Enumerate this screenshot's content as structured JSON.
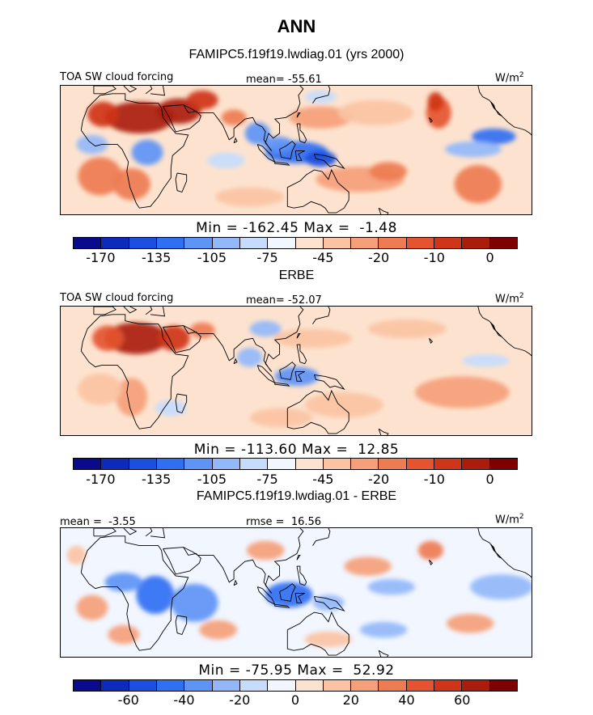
{
  "figure_title": "ANN",
  "colors": {
    "scale": [
      "#0a0a8c",
      "#0d2bbb",
      "#1a4fe0",
      "#2f6ff2",
      "#5d94f6",
      "#93b8fa",
      "#c6dcfd",
      "#f2f6ff",
      "#fde3cf",
      "#fbc3a3",
      "#f5a07a",
      "#ee7c52",
      "#e5542f",
      "#cf3518",
      "#aa1c0c",
      "#7f0000"
    ],
    "land": "#000000"
  },
  "chart_data": [
    {
      "type": "heatmap",
      "subtitle": "FAMIPC5.f19f19.lwdiag.01 (yrs 2000)",
      "left_label": "TOA SW cloud forcing",
      "center_label": "mean= -55.61",
      "right_label": "W/m",
      "right_label_sup": "2",
      "stats": "Min = -162.45 Max =  -1.48",
      "colorbar_ticks": [
        "-170",
        "-135",
        "-105",
        "-75",
        "-45",
        "-20",
        "-10",
        "0"
      ],
      "regions": [
        {
          "lon": 20,
          "lat": 22,
          "value": 0.96,
          "rx": 22,
          "ry": 10
        },
        {
          "lon": 45,
          "lat": 26,
          "value": 0.92,
          "rx": 14,
          "ry": 8
        },
        {
          "lon": 60,
          "lat": 33,
          "value": 0.85,
          "rx": 10,
          "ry": 6
        },
        {
          "lon": -3,
          "lat": 24,
          "value": 0.85,
          "rx": 10,
          "ry": 8
        },
        {
          "lon": 15,
          "lat": -20,
          "value": 0.72,
          "rx": 12,
          "ry": 10
        },
        {
          "lon": -5,
          "lat": -15,
          "value": 0.7,
          "rx": 14,
          "ry": 12
        },
        {
          "lon": 160,
          "lat": -17,
          "value": 0.68,
          "rx": 28,
          "ry": 8
        },
        {
          "lon": 135,
          "lat": 22,
          "value": 0.65,
          "rx": 20,
          "ry": 7
        },
        {
          "lon": 170,
          "lat": 25,
          "value": 0.62,
          "rx": 24,
          "ry": 8
        },
        {
          "lon": 90,
          "lat": -28,
          "value": 0.62,
          "rx": 22,
          "ry": 6
        },
        {
          "lon": 178,
          "lat": -12,
          "value": 0.72,
          "rx": 12,
          "ry": 6
        },
        {
          "lon": 210,
          "lat": 25,
          "value": 0.78,
          "rx": 8,
          "ry": 10
        },
        {
          "lon": 208,
          "lat": 32,
          "value": 0.88,
          "rx": 5,
          "ry": 6
        },
        {
          "lon": 235,
          "lat": -20,
          "value": 0.7,
          "rx": 15,
          "ry": 12
        },
        {
          "lon": 120,
          "lat": 0,
          "value": 0.18,
          "rx": 20,
          "ry": 7
        },
        {
          "lon": 108,
          "lat": 5,
          "value": 0.25,
          "rx": 10,
          "ry": 5
        },
        {
          "lon": 135,
          "lat": -4,
          "value": 0.15,
          "rx": 10,
          "ry": 5
        },
        {
          "lon": 25,
          "lat": 0,
          "value": 0.28,
          "rx": 10,
          "ry": 8
        },
        {
          "lon": -10,
          "lat": 5,
          "value": 0.33,
          "rx": 10,
          "ry": 6
        },
        {
          "lon": 95,
          "lat": 12,
          "value": 0.28,
          "rx": 8,
          "ry": 7
        },
        {
          "lon": 75,
          "lat": -5,
          "value": 0.38,
          "rx": 12,
          "ry": 5
        },
        {
          "lon": 245,
          "lat": 10,
          "value": 0.22,
          "rx": 14,
          "ry": 5
        },
        {
          "lon": 232,
          "lat": 2,
          "value": 0.35,
          "rx": 18,
          "ry": 5
        },
        {
          "lon": 135,
          "lat": 35,
          "value": 0.38,
          "rx": 10,
          "ry": 4
        },
        {
          "lon": 80,
          "lat": 22,
          "value": 0.72,
          "rx": 8,
          "ry": 5
        }
      ]
    },
    {
      "type": "heatmap",
      "subtitle": "ERBE",
      "left_label": "TOA SW cloud forcing",
      "center_label": "mean= -52.07",
      "right_label": "W/m",
      "right_label_sup": "2",
      "stats": "Min = -113.60 Max =  12.85",
      "colorbar_ticks": [
        "-170",
        "-135",
        "-105",
        "-75",
        "-45",
        "-20",
        "-10",
        "0"
      ],
      "regions": [
        {
          "lon": 18,
          "lat": 22,
          "value": 0.92,
          "rx": 20,
          "ry": 10
        },
        {
          "lon": 42,
          "lat": 22,
          "value": 0.88,
          "rx": 10,
          "ry": 8
        },
        {
          "lon": 0,
          "lat": 22,
          "value": 0.8,
          "rx": 10,
          "ry": 8
        },
        {
          "lon": 60,
          "lat": 27,
          "value": 0.75,
          "rx": 8,
          "ry": 5
        },
        {
          "lon": 15,
          "lat": -15,
          "value": 0.65,
          "rx": 10,
          "ry": 12
        },
        {
          "lon": -5,
          "lat": -10,
          "value": 0.62,
          "rx": 14,
          "ry": 10
        },
        {
          "lon": 150,
          "lat": -20,
          "value": 0.62,
          "rx": 25,
          "ry": 8
        },
        {
          "lon": 225,
          "lat": -12,
          "value": 0.66,
          "rx": 30,
          "ry": 10
        },
        {
          "lon": 110,
          "lat": -28,
          "value": 0.62,
          "rx": 20,
          "ry": 6
        },
        {
          "lon": 130,
          "lat": 22,
          "value": 0.62,
          "rx": 25,
          "ry": 6
        },
        {
          "lon": 190,
          "lat": 28,
          "value": 0.6,
          "rx": 25,
          "ry": 6
        },
        {
          "lon": 100,
          "lat": 28,
          "value": 0.3,
          "rx": 10,
          "ry": 5
        },
        {
          "lon": 120,
          "lat": -2,
          "value": 0.28,
          "rx": 14,
          "ry": 6
        },
        {
          "lon": 90,
          "lat": 10,
          "value": 0.35,
          "rx": 8,
          "ry": 6
        },
        {
          "lon": 40,
          "lat": -22,
          "value": 0.4,
          "rx": 10,
          "ry": 5
        },
        {
          "lon": 240,
          "lat": 8,
          "value": 0.4,
          "rx": 15,
          "ry": 4
        }
      ]
    },
    {
      "type": "heatmap",
      "subtitle": "FAMIPC5.f19f19.lwdiag.01 - ERBE",
      "left_label": "mean =  -3.55",
      "center_label": "rmse =  16.56",
      "right_label": "W/m",
      "right_label_sup": "2",
      "stats": "Min = -75.95 Max =  52.92",
      "colorbar_ticks": [
        "-60",
        "-40",
        "-20",
        "0",
        "20",
        "40",
        "60"
      ],
      "regions": [
        {
          "lon": 30,
          "lat": 0,
          "value": 0.2,
          "rx": 12,
          "ry": 12
        },
        {
          "lon": 10,
          "lat": 8,
          "value": 0.28,
          "rx": 12,
          "ry": 6
        },
        {
          "lon": 55,
          "lat": -5,
          "value": 0.28,
          "rx": 15,
          "ry": 12
        },
        {
          "lon": 115,
          "lat": 0,
          "value": 0.22,
          "rx": 15,
          "ry": 8
        },
        {
          "lon": 140,
          "lat": -5,
          "value": 0.3,
          "rx": 10,
          "ry": 5
        },
        {
          "lon": 250,
          "lat": 5,
          "value": 0.33,
          "rx": 20,
          "ry": 8
        },
        {
          "lon": 180,
          "lat": 5,
          "value": 0.35,
          "rx": 15,
          "ry": 5
        },
        {
          "lon": 175,
          "lat": -22,
          "value": 0.36,
          "rx": 15,
          "ry": 5
        },
        {
          "lon": -10,
          "lat": -8,
          "value": 0.68,
          "rx": 10,
          "ry": 8
        },
        {
          "lon": 10,
          "lat": -25,
          "value": 0.68,
          "rx": 10,
          "ry": 6
        },
        {
          "lon": 70,
          "lat": -22,
          "value": 0.66,
          "rx": 12,
          "ry": 6
        },
        {
          "lon": 100,
          "lat": 28,
          "value": 0.68,
          "rx": 12,
          "ry": 6
        },
        {
          "lon": 165,
          "lat": 18,
          "value": 0.64,
          "rx": 15,
          "ry": 6
        },
        {
          "lon": 205,
          "lat": 28,
          "value": 0.72,
          "rx": 8,
          "ry": 6
        },
        {
          "lon": 230,
          "lat": -18,
          "value": 0.64,
          "rx": 15,
          "ry": 6
        },
        {
          "lon": 140,
          "lat": -28,
          "value": 0.6,
          "rx": 15,
          "ry": 5
        },
        {
          "lon": -20,
          "lat": 25,
          "value": 0.62,
          "rx": 6,
          "ry": 6
        }
      ]
    }
  ]
}
